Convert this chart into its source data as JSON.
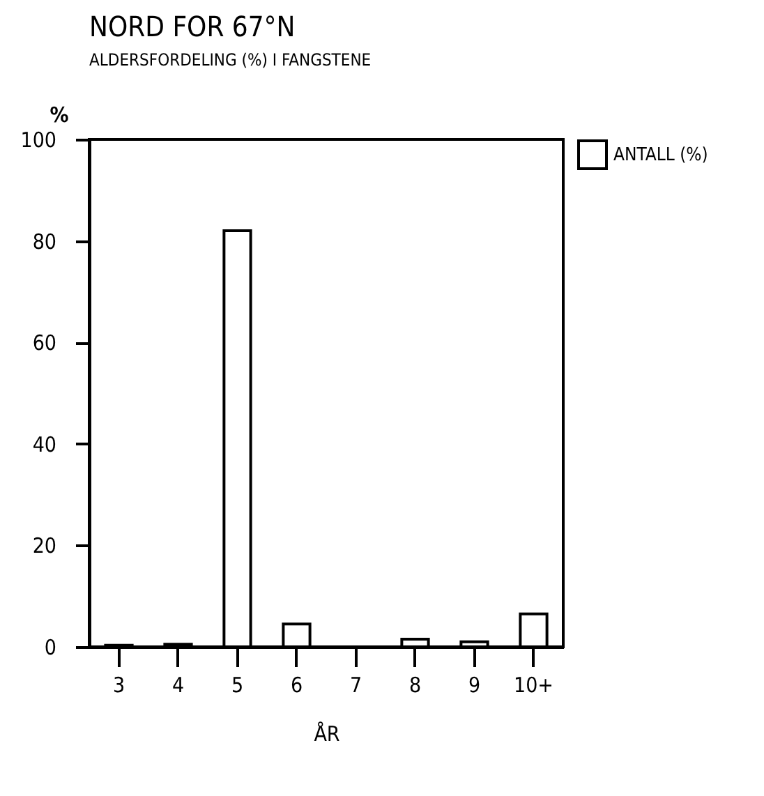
{
  "chart_data": {
    "type": "bar",
    "title": "NORD FOR 67°N",
    "subtitle": "ALDERSFORDELING (%) I FANGSTENE",
    "xlabel": "ÅR",
    "ylabel": "%",
    "categories": [
      "3",
      "4",
      "5",
      "6",
      "7",
      "8",
      "9",
      "10+"
    ],
    "series": [
      {
        "name": "ANTALL (%)",
        "color": "#ffffff",
        "values": [
          0.3,
          0.5,
          82,
          4.5,
          null,
          1.5,
          1,
          6.5
        ]
      }
    ],
    "ylim": [
      0,
      100
    ],
    "yticks": [
      0,
      20,
      40,
      60,
      80,
      100
    ],
    "grid": false,
    "legend": "top right"
  }
}
